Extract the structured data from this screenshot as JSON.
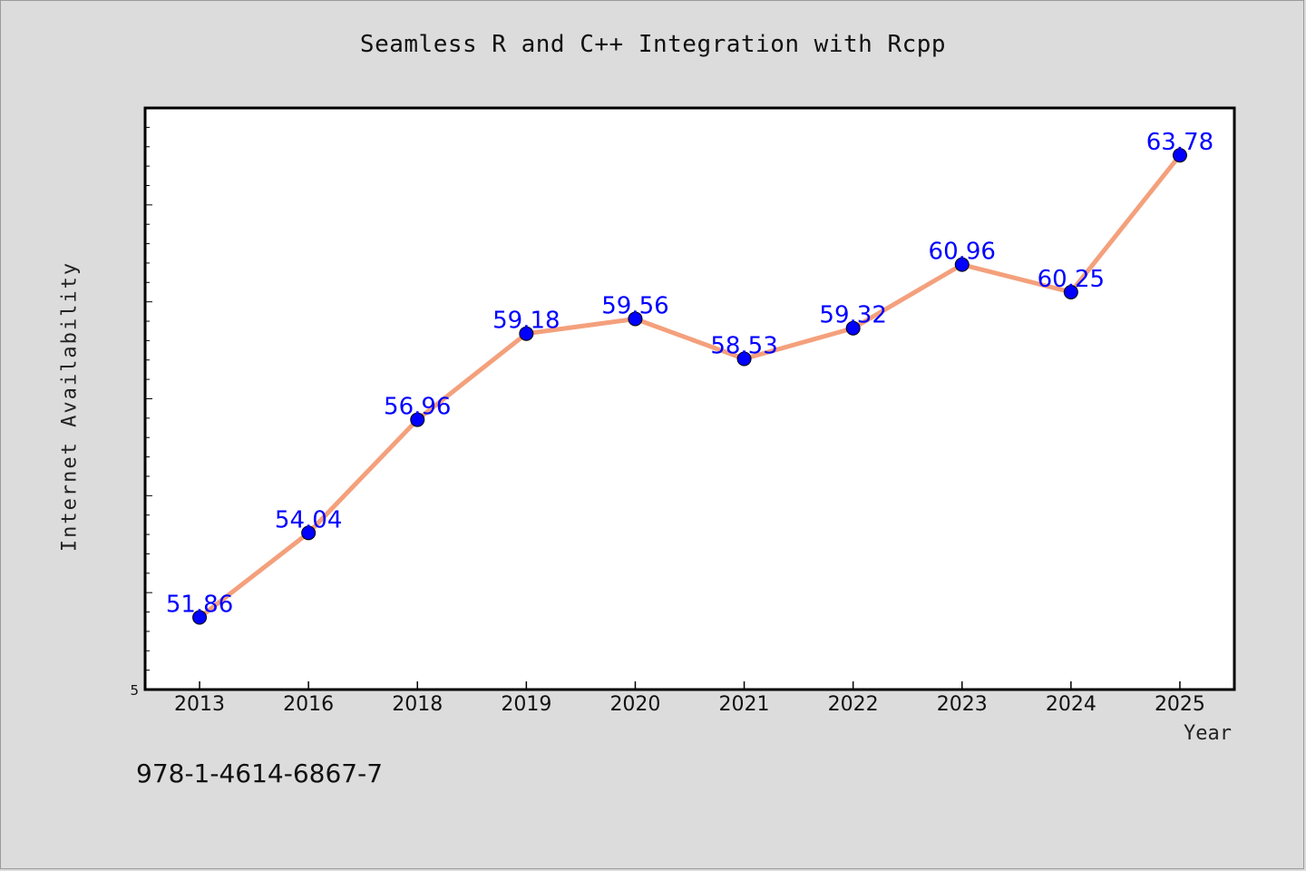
{
  "chart_data": {
    "type": "line",
    "title": "Seamless R and C++ Integration with Rcpp",
    "xlabel": "Year",
    "ylabel": "Internet Availability",
    "categories": [
      "2013",
      "2016",
      "2018",
      "2019",
      "2020",
      "2021",
      "2022",
      "2023",
      "2024",
      "2025"
    ],
    "values": [
      51.86,
      54.04,
      56.96,
      59.18,
      59.56,
      58.53,
      59.32,
      60.96,
      60.25,
      63.78
    ],
    "data_labels": [
      "51.86",
      "54.04",
      "56.96",
      "59.18",
      "59.56",
      "58.53",
      "59.32",
      "60.96",
      "60.25",
      "63.78"
    ],
    "y_tick_label": "5",
    "ylim": [
      50,
      65
    ],
    "grid": false,
    "legend": "none",
    "line_color": "#f4a07c",
    "marker_color": "#0000ff",
    "label_color": "#0000ff",
    "background": "#dcdcdc",
    "plot_background": "#ffffff"
  },
  "footer": {
    "code": "978-1-4614-6867-7"
  }
}
